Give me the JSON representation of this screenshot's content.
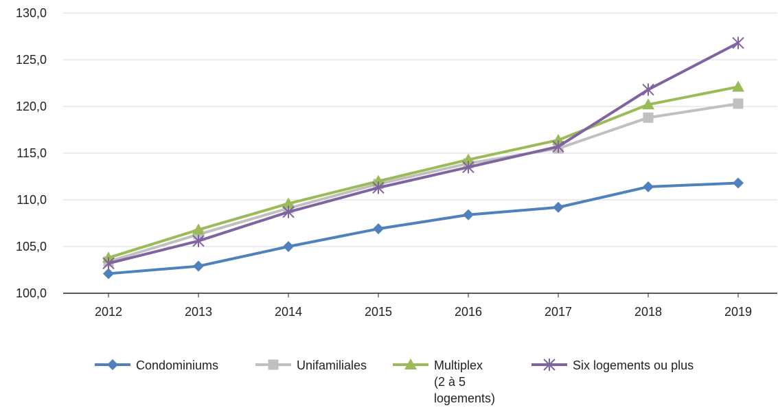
{
  "chart_data": {
    "type": "line",
    "x": [
      "2012",
      "2013",
      "2014",
      "2015",
      "2016",
      "2017",
      "2018",
      "2019"
    ],
    "ylim": [
      100,
      130
    ],
    "yticks": [
      "100,0",
      "105,0",
      "110,0",
      "115,0",
      "120,0",
      "125,0",
      "130,0"
    ],
    "grid": true,
    "legend_position": "bottom",
    "series": [
      {
        "name": "Condominiums",
        "color": "#4f81bd",
        "marker": "diamond",
        "values": [
          102.1,
          102.9,
          105.0,
          106.9,
          108.4,
          109.2,
          111.4,
          111.8
        ]
      },
      {
        "name": "Unifamiliales",
        "color": "#c0c0c0",
        "marker": "square",
        "values": [
          103.4,
          106.3,
          109.1,
          111.7,
          113.9,
          115.5,
          118.8,
          120.3
        ]
      },
      {
        "name": "Multiplex\n(2 à 5\nlogements)",
        "color": "#9bbb59",
        "marker": "triangle",
        "values": [
          103.8,
          106.8,
          109.6,
          112.0,
          114.3,
          116.4,
          120.2,
          122.1
        ]
      },
      {
        "name": "Six logements ou plus",
        "color": "#8064a2",
        "marker": "star",
        "values": [
          103.2,
          105.6,
          108.7,
          111.3,
          113.5,
          115.7,
          121.8,
          126.8
        ]
      }
    ]
  }
}
